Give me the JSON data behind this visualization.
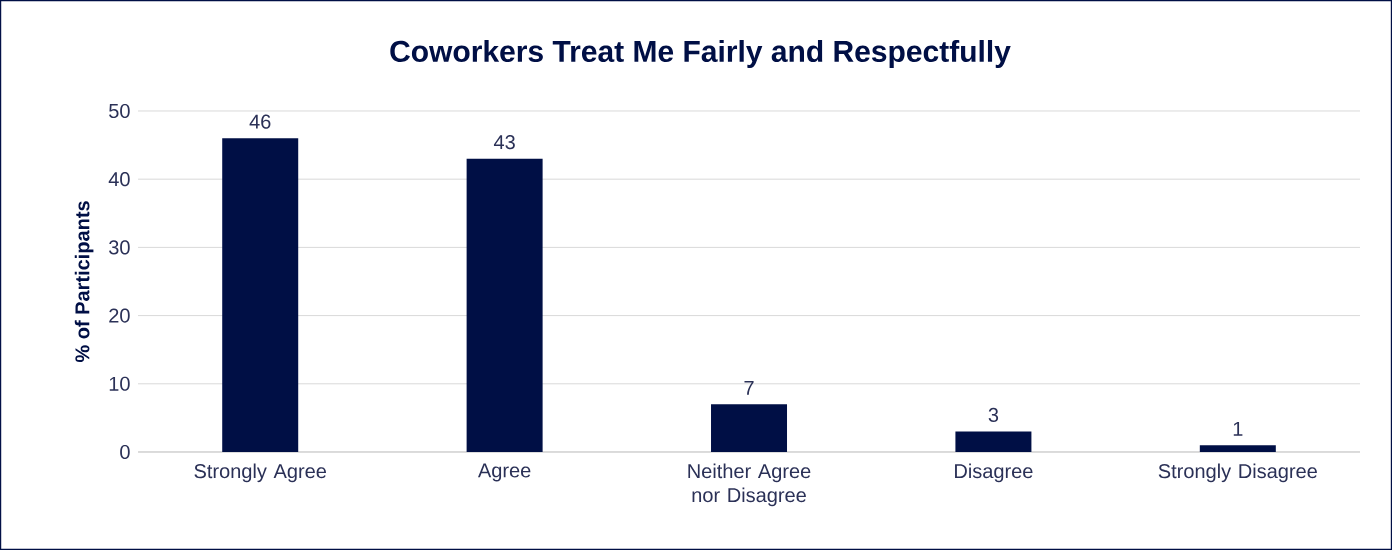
{
  "chart_data": {
    "type": "bar",
    "title": "Coworkers Treat Me Fairly and Respectfully",
    "ylabel": "% of Participants",
    "categories": [
      "Strongly Agree",
      "Agree",
      "Neither Agree nor Disagree",
      "Disagree",
      "Strongly Disagree"
    ],
    "values": [
      46,
      43,
      7,
      3,
      1
    ],
    "color": "#000f45",
    "ylim": [
      0,
      50
    ],
    "yticks": [
      0,
      10,
      20,
      30,
      40,
      50
    ],
    "grid": "y",
    "data_labels": true
  }
}
